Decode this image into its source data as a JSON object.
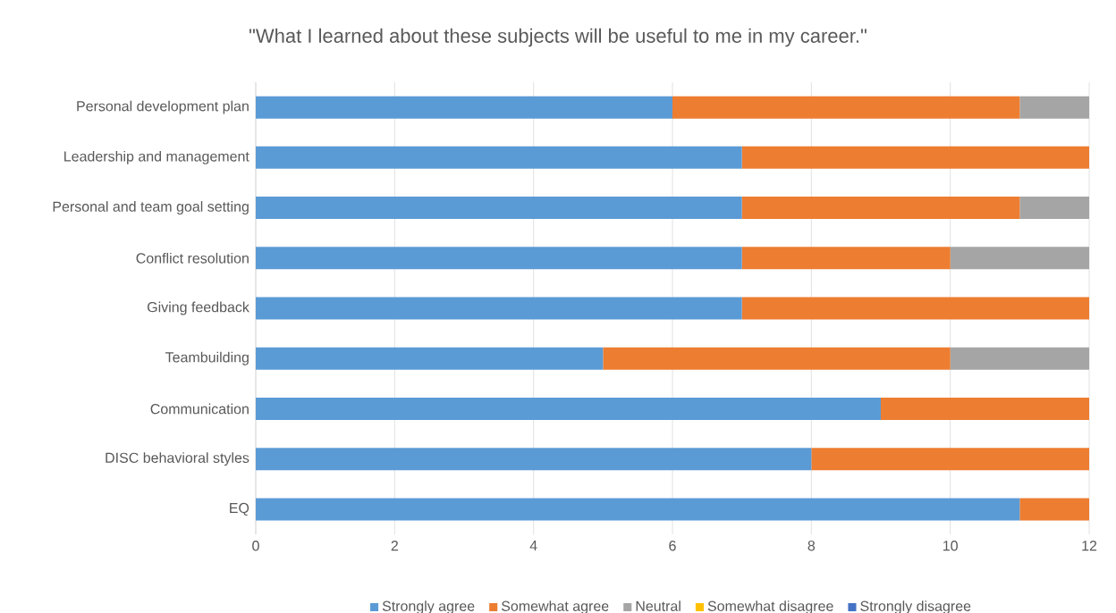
{
  "chart_data": {
    "type": "bar",
    "orientation": "horizontal",
    "stacked": true,
    "title": "\"What I learned about these subjects will be useful to me in my career.\"",
    "categories": [
      "Personal development plan",
      "Leadership and management",
      "Personal and team goal setting",
      "Conflict resolution",
      "Giving feedback",
      "Teambuilding",
      "Communication",
      "DISC behavioral styles",
      "EQ"
    ],
    "series": [
      {
        "name": "Strongly agree",
        "color": "#5b9bd5",
        "values": [
          6,
          7,
          7,
          7,
          7,
          5,
          9,
          8,
          11
        ]
      },
      {
        "name": "Somewhat agree",
        "color": "#ed7d31",
        "values": [
          5,
          5,
          4,
          3,
          5,
          5,
          3,
          4,
          1
        ]
      },
      {
        "name": "Neutral",
        "color": "#a5a5a5",
        "values": [
          1,
          0,
          1,
          2,
          0,
          2,
          0,
          0,
          0
        ]
      },
      {
        "name": "Somewhat disagree",
        "color": "#ffc000",
        "values": [
          0,
          0,
          0,
          0,
          0,
          0,
          0,
          0,
          0
        ]
      },
      {
        "name": "Strongly disagree",
        "color": "#4472c4",
        "values": [
          0,
          0,
          0,
          0,
          0,
          0,
          0,
          0,
          0
        ]
      }
    ],
    "xlim": [
      0,
      12
    ],
    "xticks": [
      0,
      2,
      4,
      6,
      8,
      10,
      12
    ],
    "grid": "x",
    "legend": "bottom"
  }
}
